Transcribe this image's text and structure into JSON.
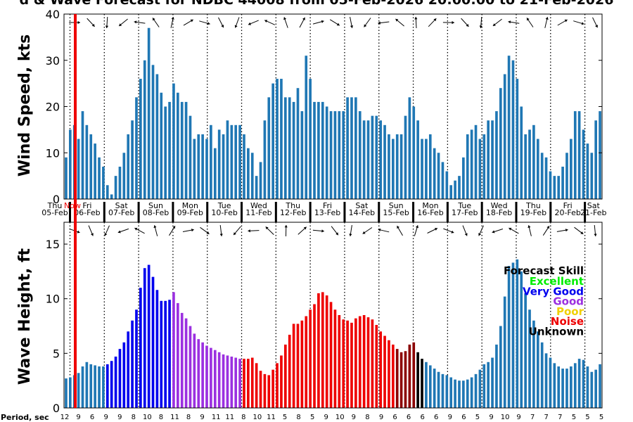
{
  "title": "d & Wave Forecast for NDBC 44008 from 05-Feb-2026 20:00:00 to 21-Feb-2026",
  "wind": {
    "ylabel": "Wind Speed, kts",
    "ylim": [
      0,
      40
    ],
    "yticks": [
      0,
      10,
      20,
      30,
      40
    ],
    "color": "#1f77b4"
  },
  "wave": {
    "ylabel": "Wave Height, ft",
    "ylim": [
      0,
      17
    ],
    "yticks": [
      0,
      5,
      10,
      15
    ]
  },
  "day_labels": [
    {
      "dow": "Thu",
      "date": "05-Feb"
    },
    {
      "dow": "Fri",
      "date": "06-Feb"
    },
    {
      "dow": "Sat",
      "date": "07-Feb"
    },
    {
      "dow": "Sun",
      "date": "08-Feb"
    },
    {
      "dow": "Mon",
      "date": "09-Feb"
    },
    {
      "dow": "Tue",
      "date": "10-Feb"
    },
    {
      "dow": "Wed",
      "date": "11-Feb"
    },
    {
      "dow": "Thu",
      "date": "12-Feb"
    },
    {
      "dow": "Fri",
      "date": "13-Feb"
    },
    {
      "dow": "Sat",
      "date": "14-Feb"
    },
    {
      "dow": "Sun",
      "date": "15-Feb"
    },
    {
      "dow": "Mon",
      "date": "16-Feb"
    },
    {
      "dow": "Tue",
      "date": "17-Feb"
    },
    {
      "dow": "Wed",
      "date": "18-Feb"
    },
    {
      "dow": "Thu",
      "date": "19-Feb"
    },
    {
      "dow": "Fri",
      "date": "20-Feb"
    },
    {
      "dow": "Sat",
      "date": "21-Feb"
    }
  ],
  "now_label": "Now",
  "period_label": "Period, sec",
  "period_ticks": [
    "12",
    "9",
    "6",
    "9",
    "9",
    "8",
    "10",
    "8",
    "11",
    "8",
    "9",
    "11",
    "11",
    "8",
    "10",
    "11",
    "5",
    "8",
    "5",
    "9",
    "10",
    "9",
    "8",
    "9",
    "6",
    "6",
    "6",
    "6",
    "9",
    "6",
    "5",
    "9",
    "10",
    "9",
    "7",
    "7",
    "7",
    "5",
    "5",
    "5"
  ],
  "legend": {
    "title": "Forecast Skill",
    "items": [
      {
        "label": "Excellent",
        "color": "#00ee00"
      },
      {
        "label": "Very Good",
        "color": "#0000ee"
      },
      {
        "label": "Good",
        "color": "#9b30e0"
      },
      {
        "label": "Poor",
        "color": "#f0d000"
      },
      {
        "label": "Noise",
        "color": "#ee0000"
      },
      {
        "label": "Unknown",
        "color": "#000000"
      }
    ]
  },
  "skill_colors": {
    "U": "#1f77b4",
    "VG": "#0000ee",
    "G": "#9b30e0",
    "N": "#ee0000",
    "DN": "#8b0000",
    "K": "#000000"
  },
  "chart_data": [
    {
      "type": "bar",
      "name": "wind",
      "ylabel": "Wind Speed, kts",
      "ylim": [
        0,
        40
      ],
      "values": [
        9,
        15,
        16,
        13,
        19,
        16,
        14,
        12,
        9,
        7,
        3,
        1,
        5,
        7,
        10,
        14,
        17,
        22,
        26,
        30,
        37,
        29,
        27,
        23,
        20,
        21,
        25,
        23,
        21,
        21,
        18,
        13,
        14,
        14,
        13,
        16,
        11,
        15,
        14,
        17,
        16,
        16,
        16,
        14,
        11,
        10,
        5,
        8,
        17,
        22,
        25,
        26,
        26,
        22,
        22,
        21,
        24,
        19,
        31,
        26,
        21,
        21,
        21,
        20,
        19,
        19,
        19,
        19,
        22,
        22,
        22,
        19,
        17,
        17,
        18,
        18,
        17,
        16,
        14,
        13,
        14,
        14,
        18,
        22,
        20,
        17,
        13,
        13,
        14,
        11,
        10,
        8,
        6,
        3,
        4,
        5,
        9,
        14,
        15,
        16,
        13,
        14,
        17,
        17,
        19,
        24,
        27,
        31,
        30,
        26,
        20,
        14,
        15,
        16,
        13,
        10,
        9,
        6,
        5,
        5,
        7,
        10,
        13,
        19,
        19,
        15,
        12,
        10,
        17,
        19
      ],
      "grid": "dotted vertical day lines"
    },
    {
      "type": "bar",
      "name": "wave",
      "ylabel": "Wave Height, ft",
      "ylim": [
        0,
        17
      ],
      "values": [
        2.7,
        2.8,
        3.0,
        3.2,
        3.8,
        4.2,
        4.0,
        3.9,
        3.8,
        3.8,
        4.0,
        4.3,
        4.7,
        5.4,
        6.0,
        7.0,
        8.0,
        9.0,
        11.0,
        12.8,
        13.1,
        12.0,
        10.8,
        9.8,
        9.8,
        9.9,
        10.6,
        9.6,
        8.7,
        8.2,
        7.5,
        6.8,
        6.3,
        6.0,
        5.7,
        5.5,
        5.3,
        5.1,
        4.9,
        4.8,
        4.7,
        4.6,
        4.5,
        4.5,
        4.5,
        4.6,
        4.1,
        3.4,
        3.1,
        3.0,
        3.5,
        4.1,
        4.8,
        5.8,
        6.7,
        7.7,
        7.7,
        8.0,
        8.4,
        9.0,
        9.5,
        10.5,
        10.6,
        10.3,
        9.7,
        9.0,
        8.5,
        8.1,
        8.0,
        7.8,
        8.2,
        8.4,
        8.5,
        8.3,
        8.1,
        7.6,
        7.0,
        6.6,
        6.2,
        5.8,
        5.4,
        5.1,
        5.2,
        5.8,
        6.0,
        5.1,
        4.5,
        4.2,
        3.9,
        3.6,
        3.3,
        3.1,
        3.0,
        2.8,
        2.6,
        2.5,
        2.5,
        2.6,
        2.8,
        3.1,
        3.5,
        4.0,
        4.2,
        4.6,
        5.8,
        7.5,
        10.2,
        13.0,
        13.3,
        13.6,
        12.5,
        10.5,
        9.0,
        8.0,
        7.0,
        6.0,
        5.0,
        4.6,
        4.1,
        3.8,
        3.6,
        3.6,
        3.8,
        4.1,
        4.5,
        4.4,
        3.8,
        3.3,
        3.5,
        4.0
      ],
      "skill": [
        "U",
        "U",
        "U",
        "U",
        "U",
        "U",
        "U",
        "U",
        "U",
        "U",
        "VG",
        "VG",
        "VG",
        "VG",
        "VG",
        "VG",
        "VG",
        "VG",
        "VG",
        "VG",
        "VG",
        "VG",
        "VG",
        "VG",
        "VG",
        "VG",
        "G",
        "G",
        "G",
        "G",
        "G",
        "G",
        "G",
        "G",
        "G",
        "G",
        "G",
        "G",
        "G",
        "G",
        "G",
        "G",
        "G",
        "N",
        "N",
        "N",
        "N",
        "N",
        "N",
        "N",
        "N",
        "N",
        "N",
        "N",
        "N",
        "N",
        "N",
        "N",
        "N",
        "N",
        "N",
        "N",
        "N",
        "N",
        "N",
        "N",
        "N",
        "N",
        "N",
        "N",
        "N",
        "N",
        "N",
        "N",
        "N",
        "N",
        "N",
        "N",
        "N",
        "N",
        "DN",
        "DN",
        "DN",
        "DN",
        "DN",
        "K",
        "K",
        "U",
        "U",
        "U",
        "U",
        "U",
        "U",
        "U",
        "U",
        "U",
        "U",
        "U",
        "U",
        "U",
        "U",
        "U",
        "U",
        "U",
        "U",
        "U",
        "U",
        "U",
        "U",
        "U",
        "U",
        "U",
        "U",
        "U",
        "U",
        "U",
        "U",
        "U",
        "U",
        "U",
        "U",
        "U",
        "U",
        "U",
        "U",
        "U",
        "U",
        "U",
        "U"
      ]
    }
  ]
}
